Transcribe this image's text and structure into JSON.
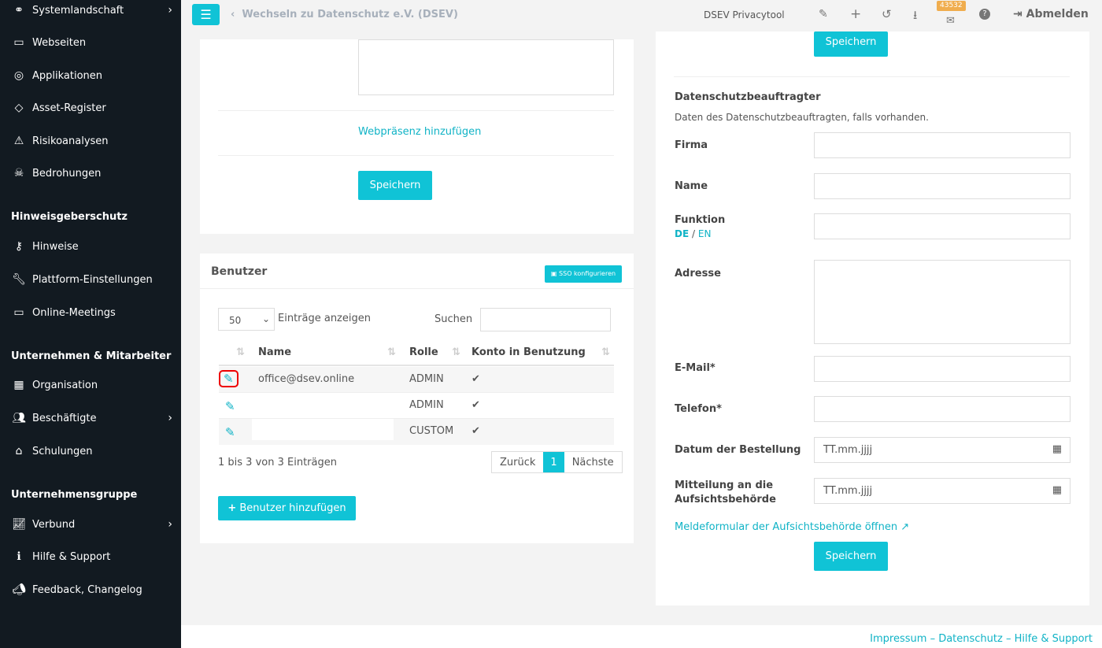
{
  "sidebar": {
    "items": [
      {
        "label": "Systemlandschaft",
        "icon": "network-icon",
        "chevron": true
      },
      {
        "label": "Webseiten",
        "icon": "monitor-icon"
      },
      {
        "label": "Applikationen",
        "icon": "app-icon"
      },
      {
        "label": "Asset-Register",
        "icon": "diamond-icon"
      },
      {
        "label": "Risikoanalysen",
        "icon": "warning-icon"
      },
      {
        "label": "Bedrohungen",
        "icon": "skull-icon"
      },
      {
        "label": "Hinweise",
        "icon": "key-icon"
      },
      {
        "label": "Plattform-Einstellungen",
        "icon": "wrench-icon"
      },
      {
        "label": "Online-Meetings",
        "icon": "video-icon"
      },
      {
        "label": "Organisation",
        "icon": "building-icon"
      },
      {
        "label": "Beschäftigte",
        "icon": "users-icon",
        "chevron": true
      },
      {
        "label": "Schulungen",
        "icon": "training-icon"
      },
      {
        "label": "Verbund",
        "icon": "chart-icon",
        "chevron": true
      },
      {
        "label": "Hilfe & Support",
        "icon": "info-icon"
      },
      {
        "label": "Feedback, Changelog",
        "icon": "megaphone-icon"
      }
    ],
    "headers": [
      "Hinweisgeberschutz",
      "Unternehmen & Mitarbeiter",
      "Unternehmensgruppe"
    ]
  },
  "topbar": {
    "switch_label": "Wechseln zu Datenschutz e.V. (DSEV)",
    "app_name": "DSEV Privacytool",
    "mail_badge": "43532",
    "logout": "Abmelden"
  },
  "left": {
    "webpresence_link": "Webpräsenz hinzufügen",
    "save": "Speichern"
  },
  "users": {
    "title": "Benutzer",
    "sso_button": "SSO konfigurieren",
    "page_size": "50",
    "entries_label": "Einträge anzeigen",
    "search_label": "Suchen",
    "columns": [
      "Name",
      "Rolle",
      "Konto in Benutzung"
    ],
    "rows": [
      {
        "name": "office@dsev.online",
        "role": "ADMIN",
        "active": "✔"
      },
      {
        "name": "",
        "role": "ADMIN",
        "active": "✔"
      },
      {
        "name": "",
        "role": "CUSTOM",
        "active": "✔"
      }
    ],
    "info": "1 bis 3 von 3 Einträgen",
    "prev": "Zurück",
    "page": "1",
    "next": "Nächste",
    "add_button": "Benutzer hinzufügen"
  },
  "dpo": {
    "save_top": "Speichern",
    "title": "Datenschutzbeauftragter",
    "subtitle": "Daten des Datenschutzbeauftragten, falls vorhanden.",
    "fields": {
      "firma": "Firma",
      "name": "Name",
      "funktion": "Funktion",
      "adresse": "Adresse",
      "email": "E-Mail*",
      "telefon": "Telefon*",
      "datum": "Datum der Bestellung",
      "mitteilung1": "Mitteilung an die",
      "mitteilung2": "Aufsichtsbehörde"
    },
    "lang_de": "DE",
    "lang_sep": "/",
    "lang_en": "EN",
    "date_placeholder": "TT.mm.jjjj",
    "report_link": "Meldeformular der Aufsichtsbehörde öffnen",
    "save": "Speichern"
  },
  "footer": {
    "impressum": "Impressum",
    "datenschutz": "Datenschutz",
    "hilfe": "Hilfe & Support",
    "sep": "–"
  },
  "colors": {
    "accent": "#10c3d6",
    "sidebar": "#121a21",
    "badge": "#f0ad4e"
  }
}
